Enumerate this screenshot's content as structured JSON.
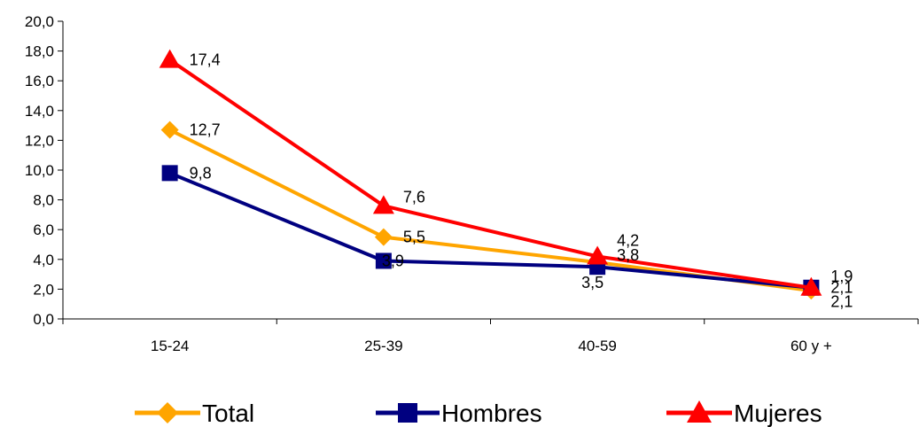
{
  "chart_data": {
    "type": "line",
    "categories": [
      "15-24",
      "25-39",
      "40-59",
      "60 y +"
    ],
    "ylim": [
      0,
      20
    ],
    "y_ticks": [
      0,
      2,
      4,
      6,
      8,
      10,
      12,
      14,
      16,
      18,
      20
    ],
    "y_tick_labels": [
      "0,0",
      "2,0",
      "4,0",
      "6,0",
      "8,0",
      "10,0",
      "12,0",
      "14,0",
      "16,0",
      "18,0",
      "20,0"
    ],
    "grid": false,
    "legend_position": "bottom",
    "series": [
      {
        "name": "Total",
        "color": "#FFA500",
        "marker": "diamond",
        "values": [
          12.7,
          5.5,
          3.8,
          1.9
        ],
        "labels": [
          "12,7",
          "5,5",
          "3,8",
          "1,9"
        ]
      },
      {
        "name": "Hombres",
        "color": "#000080",
        "marker": "square",
        "values": [
          9.8,
          3.9,
          3.5,
          2.1
        ],
        "labels": [
          "9,8",
          "3,9",
          "3,5",
          "2,1"
        ]
      },
      {
        "name": "Mujeres",
        "color": "#FF0000",
        "marker": "triangle",
        "values": [
          17.4,
          7.6,
          4.2,
          2.1
        ],
        "labels": [
          "17,4",
          "7,6",
          "4,2",
          "2,1"
        ]
      }
    ]
  }
}
